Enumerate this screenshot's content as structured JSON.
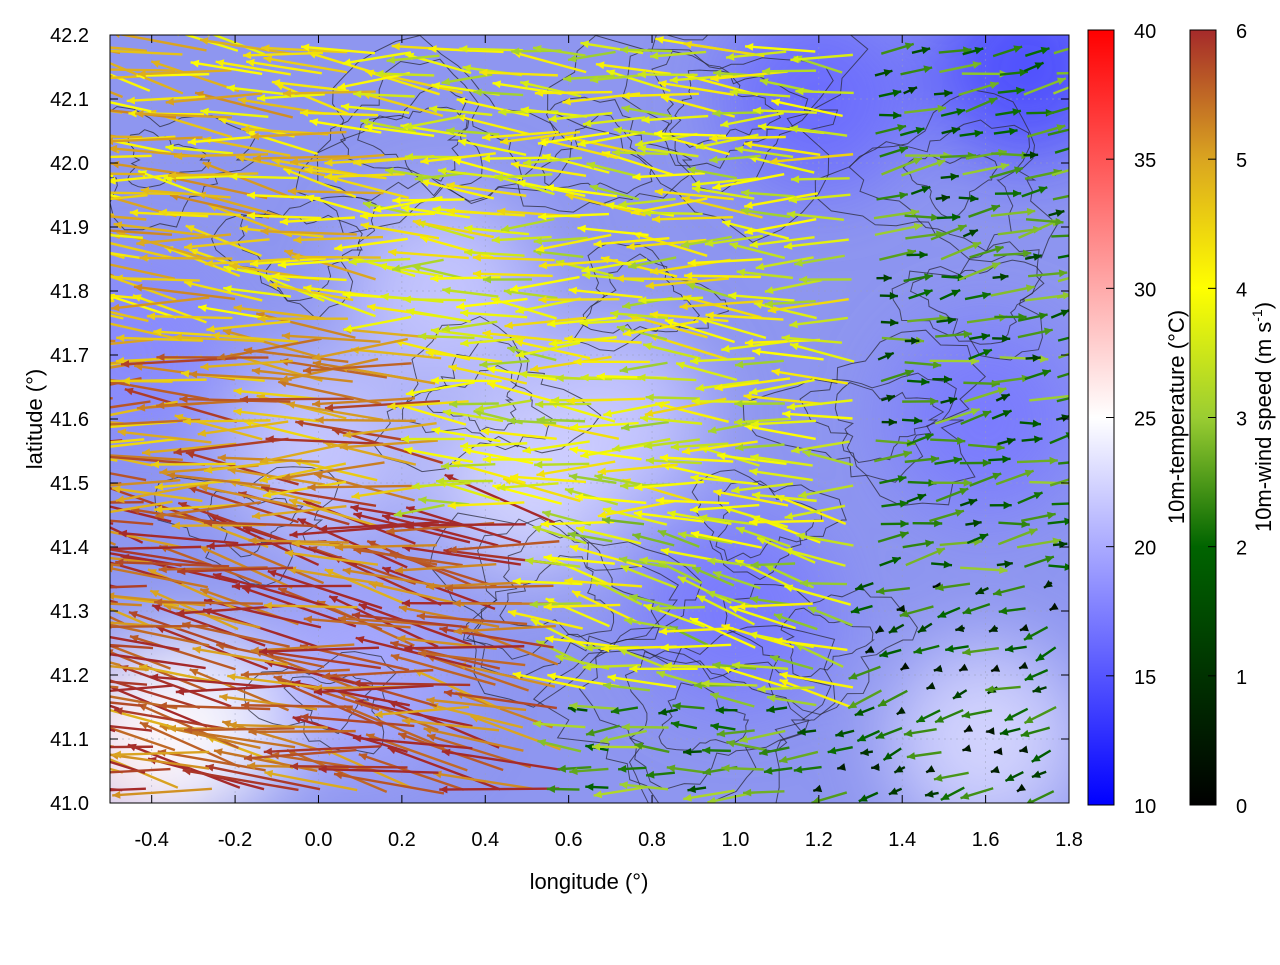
{
  "chart_data": {
    "type": "heatmap",
    "subtype": "wind-vector field over 10m-temperature map with terrain contours",
    "title": "",
    "xlabel": "longitude (°)",
    "ylabel": "latitude (°)",
    "xlim": [
      -0.5,
      1.8
    ],
    "ylim": [
      41.0,
      42.2
    ],
    "xticks": [
      "-0.4",
      "-0.2",
      "0.0",
      "0.2",
      "0.4",
      "0.6",
      "0.8",
      "1.0",
      "1.2",
      "1.4",
      "1.6",
      "1.8"
    ],
    "yticks": [
      "41.0",
      "41.1",
      "41.2",
      "41.3",
      "41.4",
      "41.5",
      "41.6",
      "41.7",
      "41.8",
      "41.9",
      "42.0",
      "42.1",
      "42.2"
    ],
    "grid": true,
    "temperature_colorbar": {
      "label": "10m-temperature (°C)",
      "range": [
        10,
        40
      ],
      "ticks": [
        "10",
        "15",
        "20",
        "25",
        "30",
        "35",
        "40"
      ],
      "colors": [
        "#0000ff",
        "#ffffff",
        "#ff0000"
      ]
    },
    "wind_colorbar": {
      "label_main": "10m-wind speed (m s",
      "label_sup": "-1",
      "label_end": ")",
      "range": [
        0,
        6
      ],
      "ticks": [
        "0",
        "1",
        "2",
        "3",
        "4",
        "5",
        "6"
      ],
      "colors": [
        "#000000",
        "#006400",
        "#9acd32",
        "#ffff00",
        "#daa520",
        "#a52a2a"
      ]
    },
    "temperature_regions": [
      {
        "lon": -0.45,
        "lat": 41.08,
        "temp": 27
      },
      {
        "lon": -0.3,
        "lat": 41.12,
        "temp": 25
      },
      {
        "lon": 0.0,
        "lat": 41.55,
        "temp": 22
      },
      {
        "lon": 0.3,
        "lat": 41.8,
        "temp": 22
      },
      {
        "lon": 0.5,
        "lat": 41.5,
        "temp": 23
      },
      {
        "lon": 0.7,
        "lat": 41.6,
        "temp": 22
      },
      {
        "lon": 1.2,
        "lat": 42.1,
        "temp": 16
      },
      {
        "lon": 1.7,
        "lat": 42.15,
        "temp": 14
      },
      {
        "lon": 1.6,
        "lat": 41.6,
        "temp": 17
      },
      {
        "lon": 1.0,
        "lat": 41.3,
        "temp": 17
      },
      {
        "lon": 1.6,
        "lat": 41.1,
        "temp": 23
      },
      {
        "lon": -0.45,
        "lat": 41.7,
        "temp": 18
      },
      {
        "lon": 0.1,
        "lat": 41.2,
        "temp": 20
      }
    ],
    "wind_regimes": [
      {
        "lon_min": -0.5,
        "lon_max": 0.6,
        "lat_min": 41.0,
        "lat_max": 41.45,
        "direction_deg": 170,
        "speed": 5.5
      },
      {
        "lon_min": -0.5,
        "lon_max": 0.3,
        "lat_min": 41.45,
        "lat_max": 41.75,
        "direction_deg": 178,
        "speed": 5.0
      },
      {
        "lon_min": -0.5,
        "lon_max": 0.2,
        "lat_min": 41.75,
        "lat_max": 42.2,
        "direction_deg": 172,
        "speed": 4.2
      },
      {
        "lon_min": 0.2,
        "lon_max": 1.3,
        "lat_min": 41.45,
        "lat_max": 42.2,
        "direction_deg": 177,
        "speed": 3.3
      },
      {
        "lon_min": 0.6,
        "lon_max": 1.3,
        "lat_min": 41.15,
        "lat_max": 41.45,
        "direction_deg": 168,
        "speed": 3.0
      },
      {
        "lon_min": 1.3,
        "lon_max": 1.8,
        "lat_min": 41.35,
        "lat_max": 42.2,
        "direction_deg": 10,
        "speed": 1.6
      },
      {
        "lon_min": 1.2,
        "lon_max": 1.8,
        "lat_min": 41.0,
        "lat_max": 41.35,
        "direction_deg": 200,
        "speed": 1.0
      },
      {
        "lon_min": 0.6,
        "lon_max": 1.2,
        "lat_min": 41.0,
        "lat_max": 41.15,
        "direction_deg": 180,
        "speed": 1.8
      }
    ]
  }
}
